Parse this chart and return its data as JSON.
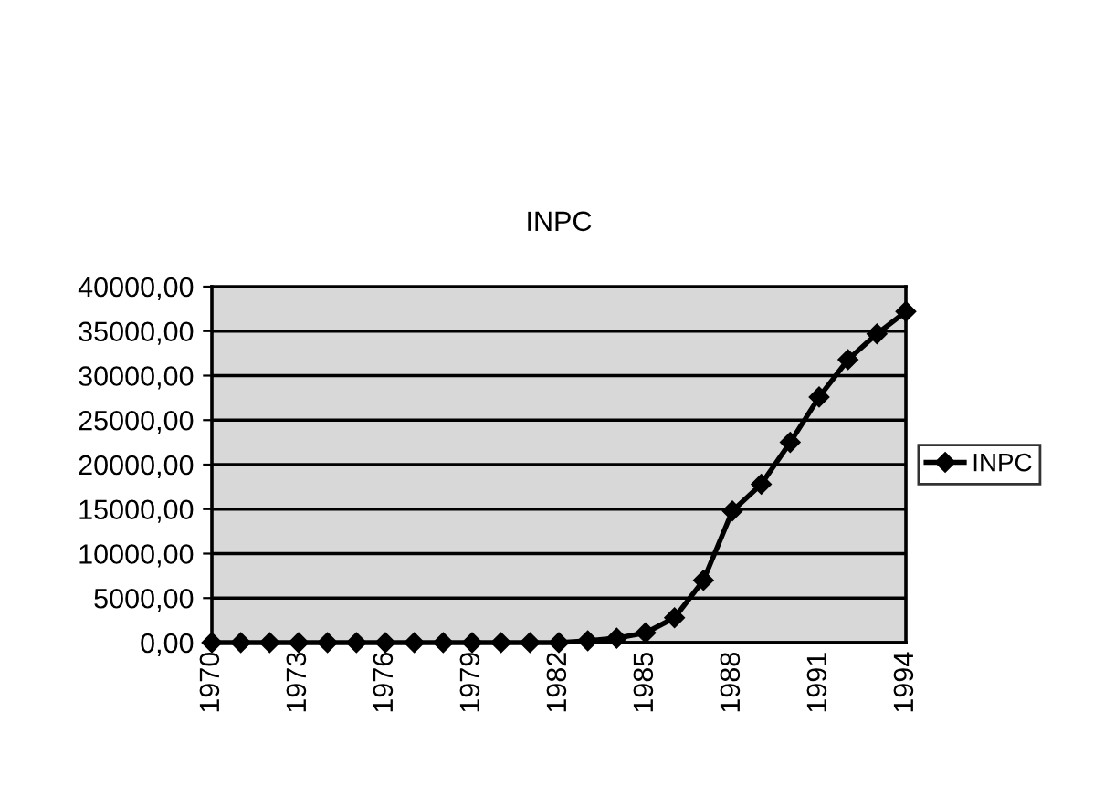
{
  "chart_data": {
    "type": "line",
    "title": "INPC",
    "categories": [
      "1970",
      null,
      null,
      "1973",
      null,
      null,
      "1976",
      null,
      null,
      "1979",
      null,
      null,
      "1982",
      null,
      null,
      "1985",
      null,
      null,
      "1988",
      null,
      null,
      "1991",
      null,
      null,
      "1994"
    ],
    "series": [
      {
        "name": "INPC",
        "color": "#000000",
        "values": [
          0,
          0,
          0,
          0,
          0,
          0,
          0,
          0,
          0,
          0,
          0,
          0,
          0,
          200,
          500,
          1100,
          2800,
          7000,
          14800,
          17800,
          22500,
          27600,
          31800,
          34700,
          37200
        ]
      }
    ],
    "ylim": [
      0,
      40000
    ],
    "yticks": [
      {
        "value": 0,
        "label": "0,00"
      },
      {
        "value": 5000,
        "label": "5000,00"
      },
      {
        "value": 10000,
        "label": "10000,00"
      },
      {
        "value": 15000,
        "label": "15000,00"
      },
      {
        "value": 20000,
        "label": "20000,00"
      },
      {
        "value": 25000,
        "label": "25000,00"
      },
      {
        "value": 30000,
        "label": "30000,00"
      },
      {
        "value": 35000,
        "label": "35000,00"
      },
      {
        "value": 40000,
        "label": "40000,00"
      }
    ],
    "grid": "y",
    "legend": "right",
    "marker": "diamond",
    "line_style": "solid"
  }
}
